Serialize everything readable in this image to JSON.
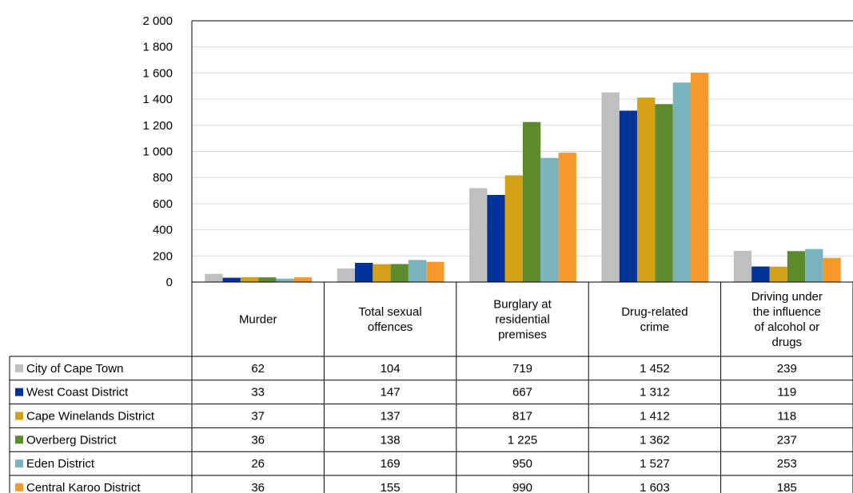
{
  "chart_data": {
    "type": "bar",
    "title": "",
    "xlabel": "",
    "ylabel": "",
    "ylim": [
      0,
      2000
    ],
    "yticks": [
      0,
      200,
      400,
      600,
      800,
      1000,
      1200,
      1400,
      1600,
      1800,
      2000
    ],
    "ytick_labels": [
      "0",
      "200",
      "400",
      "600",
      "800",
      "1 000",
      "1 200",
      "1 400",
      "1 600",
      "1 800",
      "2 000"
    ],
    "grid": true,
    "legend": "data-table-left",
    "categories": [
      "Murder",
      "Total sexual offences",
      "Burglary at residential premises",
      "Drug-related crime",
      "Driving under the influence of alcohol or drugs"
    ],
    "category_label_lines": [
      [
        "Murder"
      ],
      [
        "Total sexual",
        "offences"
      ],
      [
        "Burglary at",
        "residential",
        "premises"
      ],
      [
        "Drug-related",
        "crime"
      ],
      [
        "Driving under",
        "the influence",
        "of alcohol or",
        "drugs"
      ]
    ],
    "series": [
      {
        "name": "City of Cape Town",
        "color": "#BFBFBF",
        "values": [
          62,
          104,
          719,
          1452,
          239
        ],
        "labels": [
          "62",
          "104",
          "719",
          "1 452",
          "239"
        ]
      },
      {
        "name": "West Coast District",
        "color": "#003399",
        "values": [
          33,
          147,
          667,
          1312,
          119
        ],
        "labels": [
          "33",
          "147",
          "667",
          "1 312",
          "119"
        ]
      },
      {
        "name": "Cape Winelands District",
        "color": "#D4A017",
        "values": [
          37,
          137,
          817,
          1412,
          118
        ],
        "labels": [
          "37",
          "137",
          "817",
          "1 412",
          "118"
        ]
      },
      {
        "name": "Overberg District",
        "color": "#5E8A2E",
        "values": [
          36,
          138,
          1225,
          1362,
          237
        ],
        "labels": [
          "36",
          "138",
          "1 225",
          "1 362",
          "237"
        ]
      },
      {
        "name": "Eden District",
        "color": "#7BB3BD",
        "values": [
          26,
          169,
          950,
          1527,
          253
        ],
        "labels": [
          "26",
          "169",
          "950",
          "1 527",
          "253"
        ]
      },
      {
        "name": "Central Karoo District",
        "color": "#F7982A",
        "values": [
          36,
          155,
          990,
          1603,
          185
        ],
        "labels": [
          "36",
          "155",
          "990",
          "1 603",
          "185"
        ]
      }
    ]
  }
}
